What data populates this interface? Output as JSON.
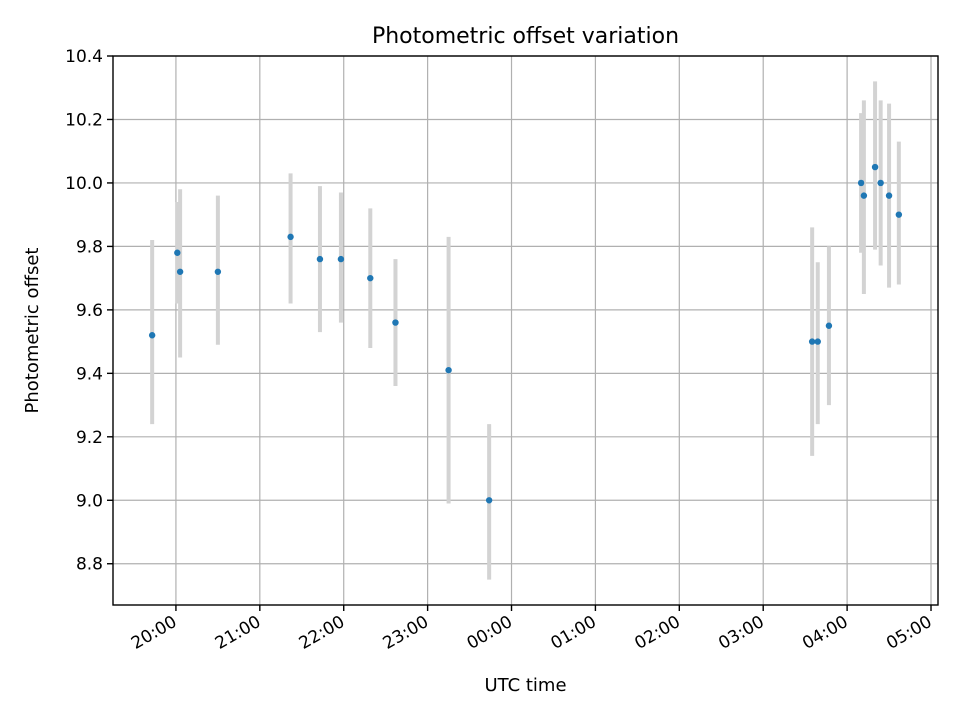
{
  "chart_data": {
    "type": "scatter",
    "title": "Photometric offset variation",
    "xlabel": "UTC time",
    "ylabel": "Photometric offset",
    "xlim": [
      "19:15",
      "05:05"
    ],
    "ylim": [
      8.67,
      10.4
    ],
    "grid": true,
    "x_ticks": [
      "20:00",
      "21:00",
      "22:00",
      "23:00",
      "00:00",
      "01:00",
      "02:00",
      "03:00",
      "04:00",
      "05:00"
    ],
    "y_ticks": [
      "8.8",
      "9.0",
      "9.2",
      "9.4",
      "9.6",
      "9.8",
      "10.0",
      "10.2",
      "10.4"
    ],
    "colors": {
      "point": "#1f77b4",
      "errorbar": "#d3d3d3",
      "grid": "#b0b0b0"
    },
    "series": [
      {
        "points": [
          {
            "x": "19:43",
            "y": 9.52,
            "ylow": 9.24,
            "yhigh": 9.82
          },
          {
            "x": "20:01",
            "y": 9.78,
            "ylow": 9.62,
            "yhigh": 9.94
          },
          {
            "x": "20:03",
            "y": 9.72,
            "ylow": 9.45,
            "yhigh": 9.98
          },
          {
            "x": "20:30",
            "y": 9.72,
            "ylow": 9.49,
            "yhigh": 9.96
          },
          {
            "x": "21:22",
            "y": 9.83,
            "ylow": 9.62,
            "yhigh": 10.03
          },
          {
            "x": "21:43",
            "y": 9.76,
            "ylow": 9.53,
            "yhigh": 9.99
          },
          {
            "x": "21:58",
            "y": 9.76,
            "ylow": 9.56,
            "yhigh": 9.97
          },
          {
            "x": "22:19",
            "y": 9.7,
            "ylow": 9.48,
            "yhigh": 9.92
          },
          {
            "x": "22:37",
            "y": 9.56,
            "ylow": 9.36,
            "yhigh": 9.76
          },
          {
            "x": "23:15",
            "y": 9.41,
            "ylow": 8.99,
            "yhigh": 9.83
          },
          {
            "x": "23:44",
            "y": 9.0,
            "ylow": 8.75,
            "yhigh": 9.24
          },
          {
            "x": "03:35",
            "y": 9.5,
            "ylow": 9.14,
            "yhigh": 9.86
          },
          {
            "x": "03:39",
            "y": 9.5,
            "ylow": 9.24,
            "yhigh": 9.75
          },
          {
            "x": "03:47",
            "y": 9.55,
            "ylow": 9.3,
            "yhigh": 9.8
          },
          {
            "x": "04:10",
            "y": 10.0,
            "ylow": 9.78,
            "yhigh": 10.22
          },
          {
            "x": "04:12",
            "y": 9.96,
            "ylow": 9.65,
            "yhigh": 10.26
          },
          {
            "x": "04:20",
            "y": 10.05,
            "ylow": 9.79,
            "yhigh": 10.32
          },
          {
            "x": "04:24",
            "y": 10.0,
            "ylow": 9.74,
            "yhigh": 10.26
          },
          {
            "x": "04:30",
            "y": 9.96,
            "ylow": 9.67,
            "yhigh": 10.25
          },
          {
            "x": "04:37",
            "y": 9.9,
            "ylow": 9.68,
            "yhigh": 10.13
          }
        ]
      }
    ]
  }
}
